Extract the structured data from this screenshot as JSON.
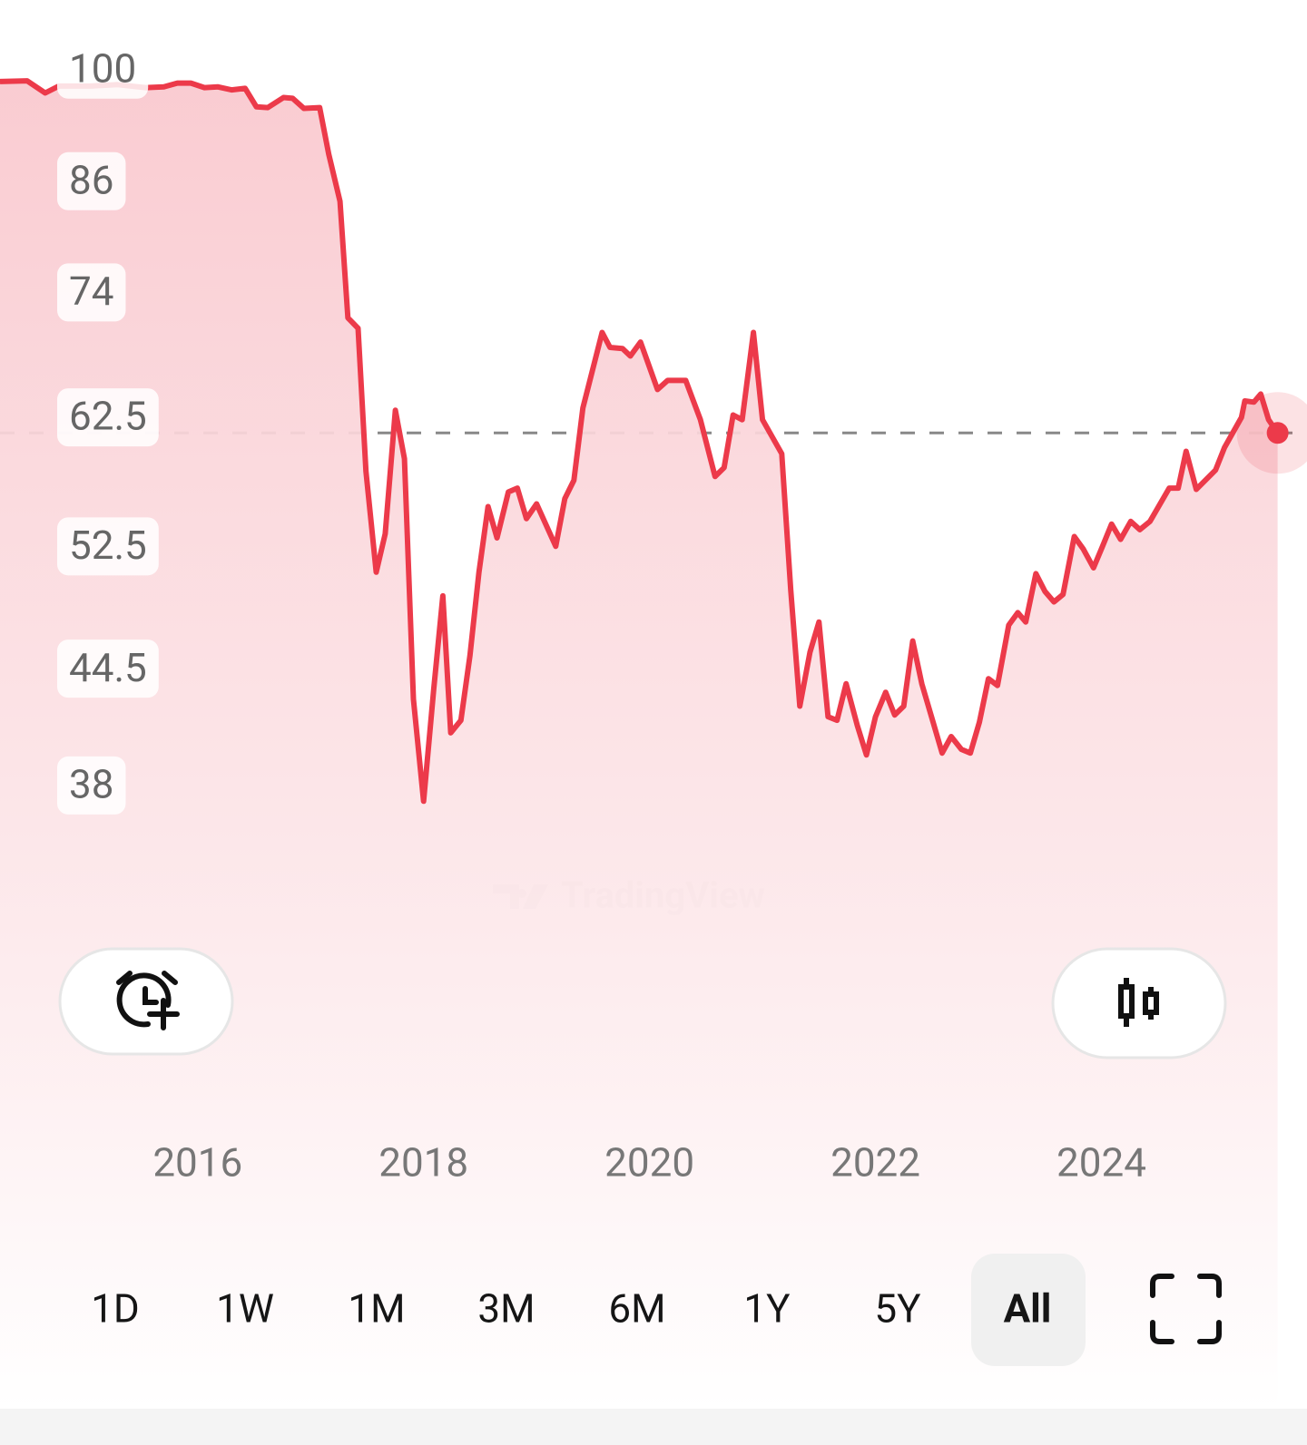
{
  "chart_data": {
    "type": "line",
    "log_scale": true,
    "x": [
      2014.25,
      2014.49,
      2014.65,
      2014.77,
      2015.05,
      2015.29,
      2015.54,
      2015.7,
      2015.82,
      2015.94,
      2016.06,
      2016.18,
      2016.3,
      2016.42,
      2016.52,
      2016.62,
      2016.76,
      2016.84,
      2016.94,
      2017.08,
      2017.16,
      2017.26,
      2017.33,
      2017.42,
      2017.49,
      2017.58,
      2017.66,
      2017.75,
      2017.83,
      2017.91,
      2018.0,
      2018.09,
      2018.17,
      2018.24,
      2018.33,
      2018.41,
      2018.49,
      2018.57,
      2018.65,
      2018.75,
      2018.83,
      2018.91,
      2019.0,
      2019.17,
      2019.25,
      2019.33,
      2019.41,
      2019.58,
      2019.65,
      2019.76,
      2019.83,
      2019.92,
      2020.07,
      2020.16,
      2020.32,
      2020.45,
      2020.58,
      2020.66,
      2020.74,
      2020.82,
      2020.92,
      2021.0,
      2021.17,
      2021.25,
      2021.33,
      2021.42,
      2021.5,
      2021.58,
      2021.66,
      2021.74,
      2021.84,
      2021.92,
      2022.0,
      2022.09,
      2022.17,
      2022.25,
      2022.33,
      2022.41,
      2022.51,
      2022.59,
      2022.67,
      2022.76,
      2022.84,
      2022.92,
      2023.0,
      2023.08,
      2023.18,
      2023.26,
      2023.33,
      2023.42,
      2023.5,
      2023.58,
      2023.66,
      2023.76,
      2023.84,
      2023.93,
      2024.01,
      2024.09,
      2024.17,
      2024.26,
      2024.34,
      2024.43,
      2024.6,
      2024.68,
      2024.75,
      2024.84,
      2025.01,
      2025.09,
      2025.24,
      2025.27,
      2025.35,
      2025.41,
      2025.48,
      2025.56
    ],
    "series": [
      {
        "color": "#ec3a4a",
        "values": [
          98.4,
          98.5,
          96.9,
          97.8,
          97.8,
          98.0,
          97.6,
          97.7,
          98.2,
          98.2,
          97.6,
          97.7,
          97.3,
          97.5,
          95.1,
          95.0,
          96.3,
          96.2,
          94.9,
          95.0,
          89.2,
          83.7,
          71.5,
          70.5,
          58.1,
          50.7,
          53.4,
          63.1,
          59.1,
          42.7,
          37.2,
          43.3,
          49.1,
          40.8,
          41.5,
          45.3,
          50.7,
          55.4,
          53.1,
          56.5,
          56.8,
          54.5,
          55.6,
          52.5,
          56.0,
          57.4,
          63.3,
          70.1,
          68.7,
          68.6,
          67.9,
          69.2,
          64.9,
          65.7,
          65.7,
          62.3,
          57.7,
          58.4,
          62.7,
          62.3,
          70.1,
          62.3,
          59.5,
          49.5,
          42.3,
          45.5,
          47.4,
          41.7,
          41.5,
          43.6,
          41.2,
          39.6,
          41.7,
          43.1,
          41.8,
          42.3,
          46.2,
          43.6,
          41.4,
          39.7,
          40.6,
          39.9,
          39.7,
          41.4,
          43.9,
          43.5,
          47.2,
          48.0,
          47.4,
          50.6,
          49.4,
          48.7,
          49.2,
          53.2,
          52.3,
          51.0,
          52.5,
          54.1,
          53.0,
          54.3,
          53.7,
          54.3,
          56.8,
          56.8,
          59.7,
          56.7,
          58.2,
          60.0,
          62.5,
          63.9,
          63.8,
          64.5,
          62.3,
          61.2
        ]
      }
    ],
    "xlim": [
      2014.25,
      2025.82
    ],
    "xticks": [
      2016,
      2018,
      2020,
      2022,
      2024
    ],
    "ylim": [
      35,
      105
    ],
    "yticks": [
      100,
      86,
      74,
      62.5,
      52.5,
      44.5,
      38
    ],
    "reference_line": 61.2,
    "watermark": "TradingView"
  },
  "ranges": [
    "1D",
    "1W",
    "1M",
    "3M",
    "6M",
    "1Y",
    "5Y",
    "All"
  ],
  "selected_range_index": 7
}
